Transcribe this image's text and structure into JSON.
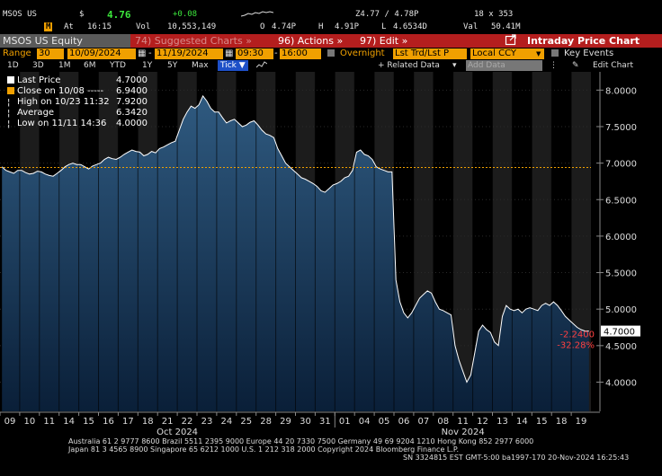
{
  "quote": {
    "ticker": "MSOS US",
    "currency": "$",
    "last": "4.76",
    "change": "+0.08",
    "at_label": "At",
    "time": "16:15",
    "vol_label": "Vol",
    "volume": "10,553,149",
    "open_label": "O",
    "open": "4.74P",
    "high_label": "H",
    "high": "4.91P",
    "low_label": "L",
    "low": "4.6534D",
    "bidask": "Z4.77 / 4.78P",
    "size": "18 x 353",
    "val_label": "Val",
    "value": "50.41M"
  },
  "title_bar": {
    "security": "MSOS US Equity",
    "suggested_charts": "74) Suggested Charts »",
    "actions": "96) Actions »",
    "edit": "97) Edit »",
    "chart_title": "Intraday Price Chart"
  },
  "range_row": {
    "range_label": "Range",
    "range_value": "30",
    "start_date": "10/09/2024",
    "end_date": "11/19/2024",
    "start_time": "09:30",
    "end_time": "16:00",
    "overnight_label": "Overnight",
    "trade_type": "Lst Trd/Lst P",
    "currency_setting": "Local CCY",
    "key_events": "Key Events"
  },
  "period_row": {
    "periods": [
      "1D",
      "3D",
      "1M",
      "6M",
      "YTD",
      "1Y",
      "5Y",
      "Max"
    ],
    "tick": "Tick",
    "related_data": "+ Related Data",
    "add_data": "Add Data",
    "edit_chart": "Edit Chart"
  },
  "legend": {
    "last_price_label": "Last Price",
    "last_price_value": "4.7000",
    "close_label": "Close on 10/08 -----",
    "close_value": "6.9400",
    "high_label": "High on 10/23 11:32",
    "high_value": "7.9200",
    "average_label": "Average",
    "average_value": "6.3420",
    "low_label": "Low on 11/11 14:36",
    "low_value": "4.0000"
  },
  "colors": {
    "background": "#000000",
    "area_top": "#2f5a80",
    "area_bottom": "#0a1f38",
    "overnight_band": "#1c1c1c",
    "line": "#ffffff",
    "reference_line": "#f0a000",
    "change_text": "#ff4040",
    "accent": "#f0a000"
  },
  "chart_data": {
    "type": "area",
    "ylim": [
      3.6,
      8.25
    ],
    "reference_close": 6.94,
    "y_ticks": [
      "4.0000",
      "4.5000",
      "5.0000",
      "5.5000",
      "6.0000",
      "6.5000",
      "7.0000",
      "7.5000",
      "8.0000"
    ],
    "x_ticks": [
      "09",
      "10",
      "11",
      "14",
      "15",
      "16",
      "17",
      "18",
      "21",
      "22",
      "23",
      "24",
      "25",
      "28",
      "29",
      "30",
      "31",
      "01",
      "04",
      "05",
      "06",
      "07",
      "08",
      "11",
      "12",
      "13",
      "14",
      "15",
      "18",
      "19"
    ],
    "month_labels": [
      "Oct 2024",
      "Nov 2024"
    ],
    "last_value_label": "4.7000",
    "change_label": "-2.2400",
    "change_pct_label": "-32.28%",
    "series": [
      {
        "values": [
          [
            6.95,
            6.9,
            6.88,
            6.86,
            6.9
          ],
          [
            6.9,
            6.87,
            6.85,
            6.86,
            6.89
          ],
          [
            6.88,
            6.85,
            6.83,
            6.82,
            6.86
          ],
          [
            6.9,
            6.95,
            6.98,
            7.0,
            6.98
          ],
          [
            6.98,
            6.95,
            6.92,
            6.96,
            6.98
          ],
          [
            7.0,
            7.05,
            7.08,
            7.06,
            7.05
          ],
          [
            7.08,
            7.12,
            7.15,
            7.18,
            7.16
          ],
          [
            7.15,
            7.1,
            7.12,
            7.16,
            7.14
          ],
          [
            7.2,
            7.22,
            7.25,
            7.28,
            7.3
          ],
          [
            7.45,
            7.6,
            7.7,
            7.78,
            7.75
          ],
          [
            7.8,
            7.92,
            7.85,
            7.75,
            7.7
          ],
          [
            7.7,
            7.62,
            7.55,
            7.58,
            7.6
          ],
          [
            7.55,
            7.5,
            7.52,
            7.56,
            7.58
          ],
          [
            7.52,
            7.45,
            7.4,
            7.38,
            7.35
          ],
          [
            7.2,
            7.1,
            7.0,
            6.95,
            6.9
          ],
          [
            6.85,
            6.8,
            6.78,
            6.75,
            6.72
          ],
          [
            6.68,
            6.62,
            6.6,
            6.65,
            6.7
          ],
          [
            6.72,
            6.75,
            6.8,
            6.82,
            6.9
          ],
          [
            7.15,
            7.18,
            7.12,
            7.1,
            7.05
          ],
          [
            6.95,
            6.92,
            6.9,
            6.88,
            6.88
          ],
          [
            5.4,
            5.1,
            4.95,
            4.88,
            4.95
          ],
          [
            5.05,
            5.15,
            5.2,
            5.25,
            5.22
          ],
          [
            5.1,
            5.0,
            4.98,
            4.95,
            4.92
          ],
          [
            4.5,
            4.3,
            4.15,
            4.0,
            4.1
          ],
          [
            4.4,
            4.7,
            4.78,
            4.72,
            4.68
          ],
          [
            4.55,
            4.5,
            4.9,
            5.05,
            5.0
          ],
          [
            4.98,
            5.0,
            4.95,
            5.0,
            5.02
          ],
          [
            5.0,
            4.98,
            5.05,
            5.08,
            5.05
          ],
          [
            5.1,
            5.05,
            4.98,
            4.9,
            4.85
          ],
          [
            4.8,
            4.75,
            4.72,
            4.7,
            4.7
          ]
        ]
      }
    ]
  },
  "footer": {
    "line1": "Australia 61 2 9777 8600 Brazil 5511 2395 9000 Europe 44 20 7330 7500 Germany 49 69 9204 1210 Hong Kong 852 2977 6000",
    "line2": "Japan 81 3 4565 8900          Singapore 65 6212 1000          U.S. 1 212 318 2000          Copyright 2024 Bloomberg Finance L.P.",
    "line3": "SN 3324815 EST  GMT-5:00 ba1997-170 20-Nov-2024 16:25:43"
  }
}
